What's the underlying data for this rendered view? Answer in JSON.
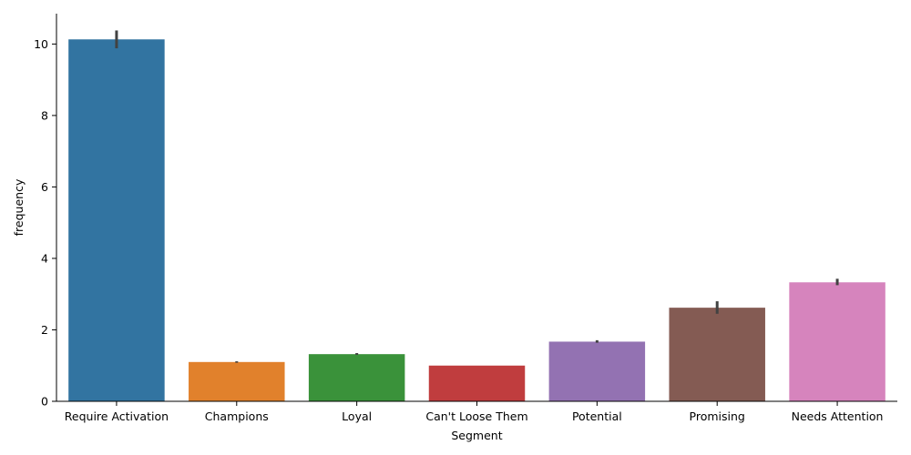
{
  "chart_data": {
    "type": "bar",
    "xlabel": "Segment",
    "ylabel": "frequency",
    "categories": [
      "Require Activation",
      "Champions",
      "Loyal",
      "Can't Loose Them",
      "Potential",
      "Promising",
      "Needs Attention"
    ],
    "values": [
      10.13,
      1.1,
      1.32,
      1.0,
      1.67,
      2.62,
      3.33
    ],
    "error_low": [
      9.88,
      1.08,
      1.3,
      1.0,
      1.64,
      2.45,
      3.25
    ],
    "error_high": [
      10.38,
      1.12,
      1.35,
      1.0,
      1.71,
      2.8,
      3.43
    ],
    "colors": [
      "#3274a1",
      "#e1812c",
      "#3a923a",
      "#c03d3e",
      "#9372b2",
      "#845b53",
      "#d684bd"
    ],
    "error_color": "#424242",
    "ylim": [
      0,
      10.85
    ],
    "yticks": [
      0,
      2,
      4,
      6,
      8,
      10
    ],
    "grid": false,
    "legend": "none"
  }
}
